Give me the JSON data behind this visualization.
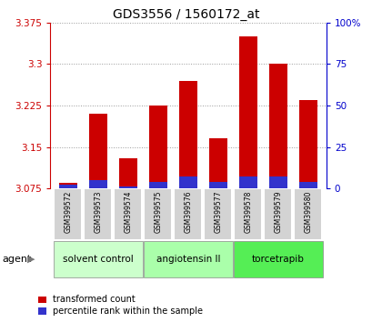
{
  "title": "GDS3556 / 1560172_at",
  "samples": [
    "GSM399572",
    "GSM399573",
    "GSM399574",
    "GSM399575",
    "GSM399576",
    "GSM399577",
    "GSM399578",
    "GSM399579",
    "GSM399580"
  ],
  "transformed_counts": [
    3.085,
    3.21,
    3.13,
    3.225,
    3.27,
    3.165,
    3.35,
    3.3,
    3.235
  ],
  "percentile_ranks": [
    2,
    5,
    1,
    4,
    7,
    4,
    7,
    7,
    4
  ],
  "ymin": 3.075,
  "ymax": 3.375,
  "yticks": [
    3.075,
    3.15,
    3.225,
    3.3,
    3.375
  ],
  "right_yticks": [
    0,
    25,
    50,
    75,
    100
  ],
  "bar_color": "#cc0000",
  "blue_color": "#3333cc",
  "groups": [
    {
      "label": "solvent control",
      "indices": [
        0,
        1,
        2
      ],
      "color": "#ccffcc"
    },
    {
      "label": "angiotensin II",
      "indices": [
        3,
        4,
        5
      ],
      "color": "#aaffaa"
    },
    {
      "label": "torcetrapib",
      "indices": [
        6,
        7,
        8
      ],
      "color": "#55ee55"
    }
  ],
  "agent_label": "agent",
  "legend_red": "transformed count",
  "legend_blue": "percentile rank within the sample",
  "left_axis_color": "#cc0000",
  "right_axis_color": "#0000cc",
  "grid_color": "#999999",
  "background_color": "#ffffff",
  "bar_width": 0.6,
  "sample_bg": "#cccccc",
  "sample_border": "#ffffff"
}
